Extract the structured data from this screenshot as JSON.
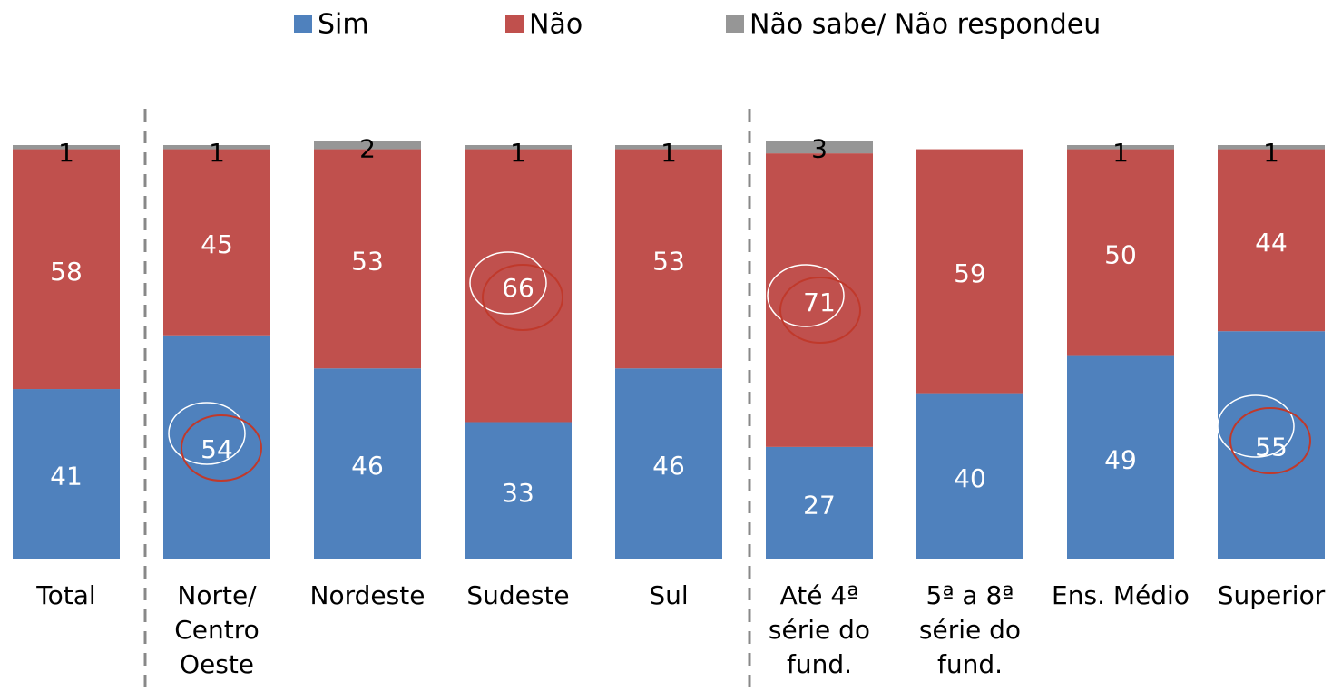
{
  "chart_data": {
    "type": "stacked_bar",
    "categories": [
      "Total",
      "Norte/ Centro Oeste",
      "Nordeste",
      "Sudeste",
      "Sul",
      "Até 4ª série do fund.",
      "5ª a 8ª série do fund.",
      "Ens. Médio",
      "Superior"
    ],
    "series": [
      {
        "name": "Sim",
        "color": "#4f81bd",
        "values": [
          41,
          54,
          46,
          33,
          46,
          27,
          40,
          49,
          55
        ]
      },
      {
        "name": "Não",
        "color": "#c0504d",
        "values": [
          58,
          45,
          53,
          66,
          53,
          71,
          59,
          50,
          44
        ]
      },
      {
        "name": "Não sabe/ Não respondeu",
        "color": "#969696",
        "values": [
          1,
          1,
          2,
          1,
          1,
          3,
          null,
          1,
          1
        ]
      }
    ],
    "ylim": [
      0,
      100
    ]
  }
}
